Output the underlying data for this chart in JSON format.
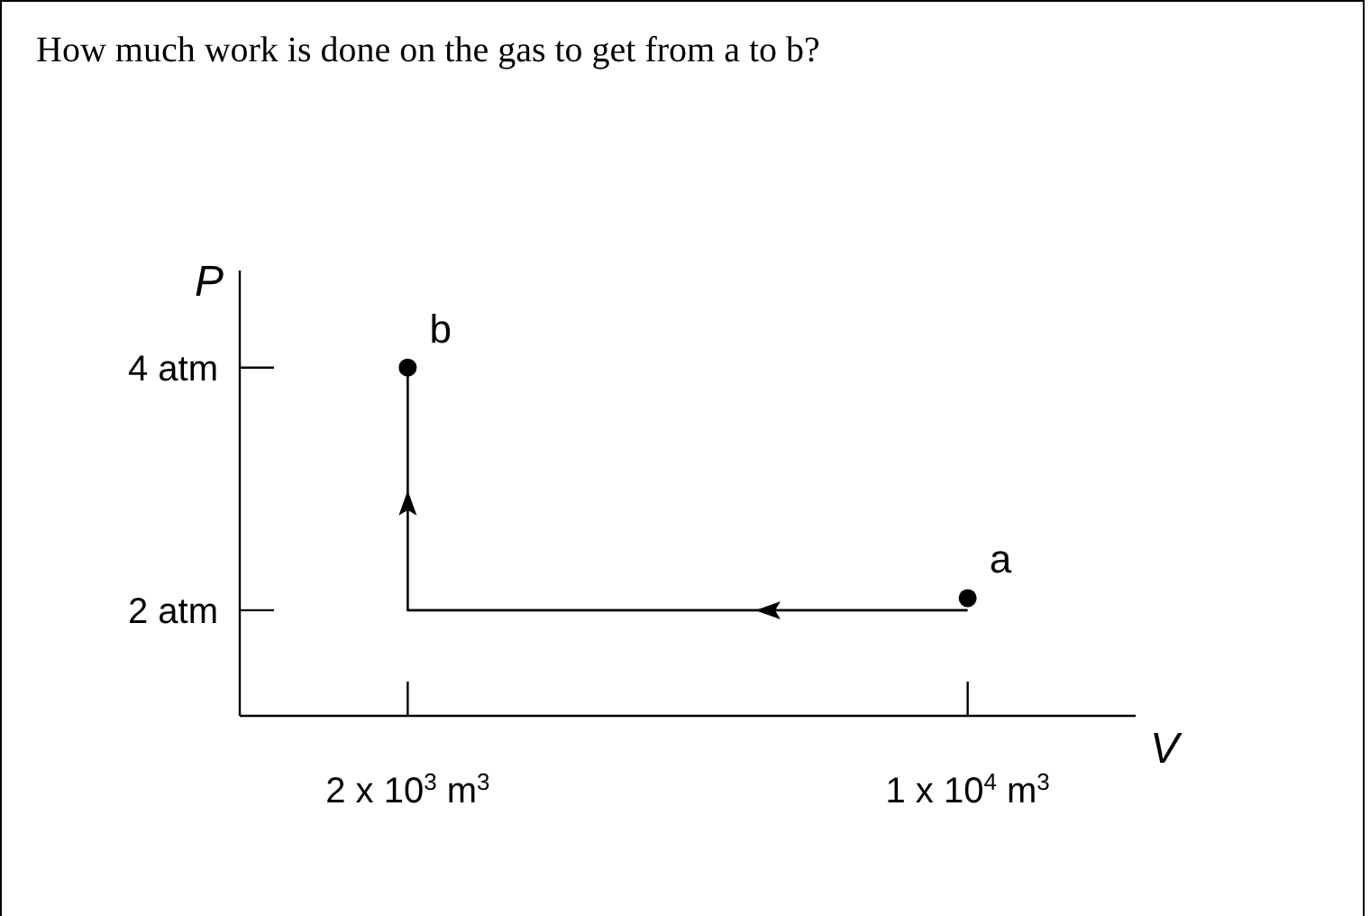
{
  "chart_data": {
    "type": "line",
    "title": "How much work is done on the gas to get from a to b?",
    "xlabel": "V",
    "ylabel": "P",
    "ylim": [
      1.13,
      4.8
    ],
    "categories": [
      "2 x 10$^{3}$ m$^{3}$",
      "1 x 10$^{4}$ m$^{3}$"
    ],
    "yticks": [
      {
        "value": 2,
        "label": "2 atm"
      },
      {
        "value": 4,
        "label": "4 atm"
      }
    ],
    "series": [
      {
        "type": "line",
        "x": [
          "1 x 10$^{4}$ m$^{3}$",
          "2 x 10$^{3}$ m$^{3}$",
          "2 x 10$^{3}$ m$^{3}$"
        ],
        "values": [
          2,
          2,
          4
        ],
        "color": "#000000"
      },
      {
        "type": "scatter",
        "x": [
          "1 x 10$^{4}$ m$^{3}$",
          "2 x 10$^{3}$ m$^{3}$"
        ],
        "values": [
          2.1,
          4
        ],
        "color": "#000000"
      }
    ],
    "annotations": [
      {
        "text": "a",
        "x": "1 x 10$^{4}$ m$^{3}$",
        "y": 2.1
      },
      {
        "text": "b",
        "x": "2 x 10$^{3}$ m$^{3}$",
        "y": 4
      }
    ]
  }
}
